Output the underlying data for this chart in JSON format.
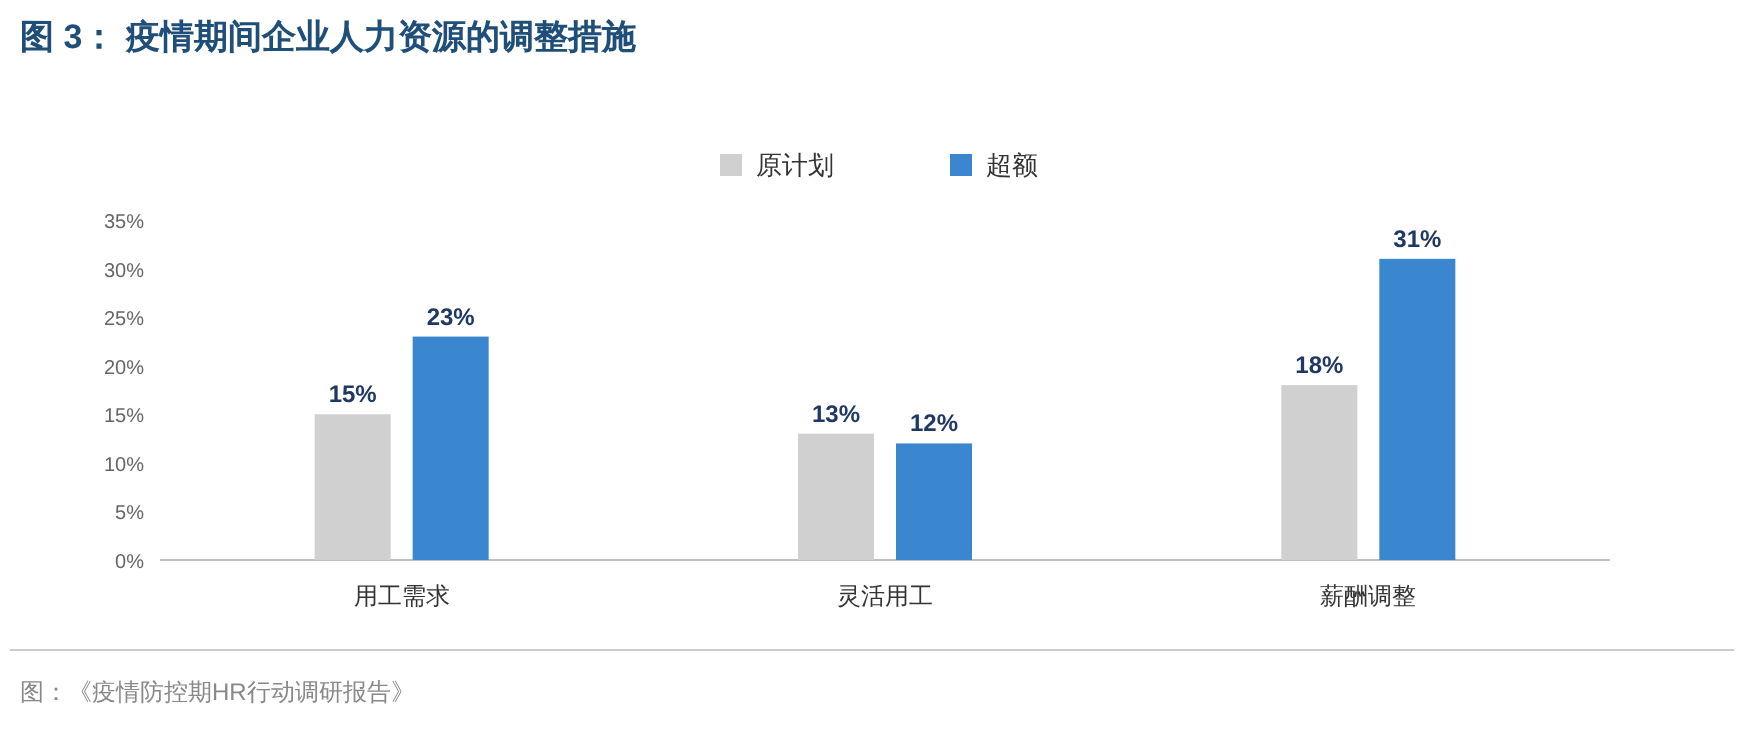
{
  "chart_data": {
    "type": "bar",
    "title": "图 3： 疫情期间企业人力资源的调整措施",
    "categories": [
      "用工需求",
      "灵活用工",
      "薪酬调整"
    ],
    "series": [
      {
        "name": "原计划",
        "color": "#d0d0d0",
        "values": [
          15,
          13,
          18
        ],
        "value_labels": [
          "15%",
          "13%",
          "18%"
        ]
      },
      {
        "name": "超额",
        "color": "#3a86cf",
        "values": [
          23,
          12,
          31
        ],
        "value_labels": [
          "23%",
          "12%",
          "31%"
        ]
      }
    ],
    "ylim": [
      0,
      35
    ],
    "yticks": [
      {
        "value": 0,
        "label": "0%"
      },
      {
        "value": 5,
        "label": "5%"
      },
      {
        "value": 10,
        "label": "10%"
      },
      {
        "value": 15,
        "label": "15%"
      },
      {
        "value": 20,
        "label": "20%"
      },
      {
        "value": 25,
        "label": "25%"
      },
      {
        "value": 30,
        "label": "30%"
      },
      {
        "value": 35,
        "label": "35%"
      }
    ],
    "legend": "top",
    "annotations": [
      "图：《疫情防控期HR行动调研报告》"
    ]
  }
}
